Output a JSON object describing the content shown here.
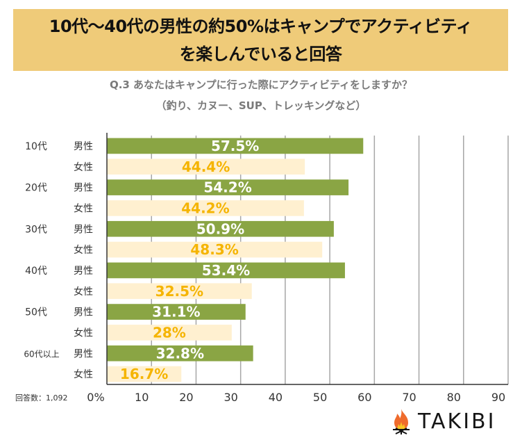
{
  "title": {
    "line1": "10代〜40代の男性の約50%はキャンプでアクティビティ",
    "line2": "を楽しんでいると回答"
  },
  "question": {
    "line1": "Q.3 あなたはキャンプに行った際にアクティビティをしますか？",
    "line2": "（釣り、カヌー、SUP、トレッキングなど）"
  },
  "respondents_label": "回答数：1,092",
  "logo": {
    "text": "TAKIBI",
    "icon": "campfire-icon"
  },
  "colors": {
    "title_bg": "#efcb79",
    "male_bar": "#8aa544",
    "female_bar": "#fff0d0",
    "male_label": "#ffffff",
    "female_label": "#f5b400"
  },
  "chart_data": {
    "type": "bar",
    "orientation": "horizontal",
    "title": "Q.3 あなたはキャンプに行った際にアクティビティをしますか？",
    "xlabel": "",
    "ylabel": "",
    "xlim": [
      0,
      90
    ],
    "x_ticks": [
      "0%",
      "10",
      "20",
      "30",
      "40",
      "50",
      "60",
      "70",
      "80",
      "90"
    ],
    "grid": true,
    "rows": [
      {
        "age": "10代",
        "sex": "男性",
        "value": 57.5,
        "label": "57.5%"
      },
      {
        "age": "",
        "sex": "女性",
        "value": 44.4,
        "label": "44.4%"
      },
      {
        "age": "20代",
        "sex": "男性",
        "value": 54.2,
        "label": "54.2%"
      },
      {
        "age": "",
        "sex": "女性",
        "value": 44.2,
        "label": "44.2%"
      },
      {
        "age": "30代",
        "sex": "男性",
        "value": 50.9,
        "label": "50.9%"
      },
      {
        "age": "",
        "sex": "女性",
        "value": 48.3,
        "label": "48.3%"
      },
      {
        "age": "40代",
        "sex": "男性",
        "value": 53.4,
        "label": "53.4%"
      },
      {
        "age": "",
        "sex": "女性",
        "value": 32.5,
        "label": "32.5%"
      },
      {
        "age": "50代",
        "sex": "男性",
        "value": 31.1,
        "label": "31.1%"
      },
      {
        "age": "",
        "sex": "女性",
        "value": 28,
        "label": "28%"
      },
      {
        "age": "60代以上",
        "sex": "男性",
        "value": 32.8,
        "label": "32.8%"
      },
      {
        "age": "",
        "sex": "女性",
        "value": 16.7,
        "label": "16.7%"
      }
    ]
  }
}
